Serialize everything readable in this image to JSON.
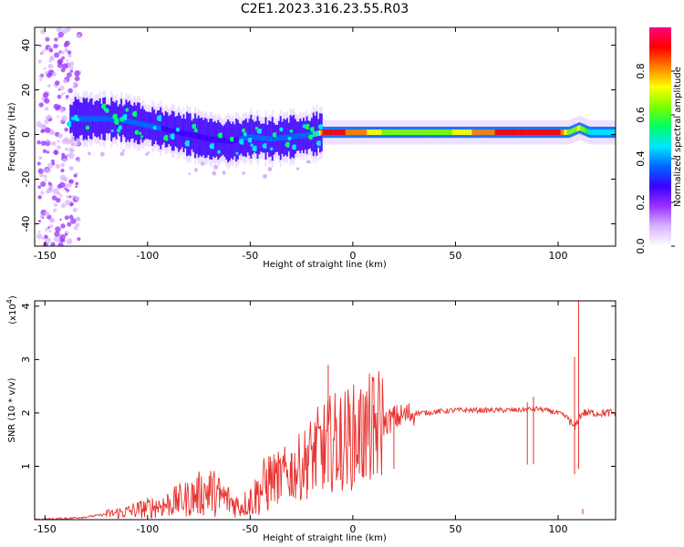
{
  "title": "C2E1.2023.316.23.55.R03",
  "chart_data": [
    {
      "type": "heatmap",
      "xlabel": "Height of straight line (km)",
      "ylabel": "Frequency (Hz)",
      "xlim": [
        -155,
        128
      ],
      "ylim": [
        -50,
        48
      ],
      "xticks": [
        -150,
        -100,
        -50,
        0,
        50,
        100
      ],
      "yticks": [
        -40,
        -20,
        0,
        20,
        40
      ],
      "colorbar": {
        "label": "Normalized spectral amplitude",
        "range": [
          0.0,
          1.0
        ],
        "ticks": [
          0.0,
          0.2,
          0.4,
          0.6,
          0.8
        ],
        "colormap": [
          "#ffffff",
          "#d9b3ff",
          "#9a32ff",
          "#3c00ff",
          "#0066ff",
          "#00e5ff",
          "#00ff66",
          "#7aff00",
          "#ffff00",
          "#ff8000",
          "#ff0000",
          "#ff007f"
        ]
      },
      "ridge": {
        "x": [
          -138,
          -130,
          -120,
          -110,
          -100,
          -90,
          -80,
          -70,
          -60,
          -50,
          -40,
          -30,
          -20,
          -15,
          0,
          20,
          40,
          60,
          80,
          100,
          105,
          110,
          115,
          128
        ],
        "freq": [
          7,
          7,
          7,
          6,
          4,
          2,
          0,
          -2,
          -3,
          -1,
          -2,
          -1,
          0,
          1,
          1,
          1,
          1,
          1,
          1,
          1,
          1,
          3,
          1,
          1
        ],
        "amplitude": [
          0.35,
          0.35,
          0.4,
          0.35,
          0.35,
          0.3,
          0.3,
          0.3,
          0.3,
          0.35,
          0.35,
          0.35,
          0.4,
          0.9,
          0.85,
          0.6,
          0.6,
          0.8,
          0.95,
          0.9,
          0.6,
          0.7,
          0.5,
          0.45
        ]
      }
    },
    {
      "type": "line",
      "xlabel": "Height of straight line (km)",
      "ylabel": "SNR (10 * v/v)",
      "y_multiplier": "(x10",
      "y_multiplier_exp": "4",
      "y_multiplier_close": ")",
      "xlim": [
        -155,
        128
      ],
      "ylim": [
        0,
        4.1
      ],
      "xticks": [
        -150,
        -100,
        -50,
        0,
        50,
        100
      ],
      "yticks": [
        1,
        2,
        3,
        4
      ],
      "color": "#e8302c",
      "series": [
        {
          "x": [
            -155,
            -140,
            -130,
            -120,
            -110,
            -100,
            -90,
            -80,
            -70,
            -60,
            -55,
            -50,
            -45,
            -40,
            -35,
            -30,
            -25,
            -20,
            -15,
            -10,
            -5,
            0,
            5,
            10,
            15,
            20,
            25,
            30,
            35,
            40,
            50,
            60,
            70,
            80,
            90,
            100,
            105,
            108,
            110,
            112,
            115,
            120,
            128
          ],
          "y": [
            0.0,
            0.02,
            0.05,
            0.1,
            0.15,
            0.22,
            0.3,
            0.4,
            0.55,
            0.35,
            0.25,
            0.35,
            0.55,
            0.75,
            0.8,
            0.9,
            1.0,
            1.2,
            1.35,
            1.45,
            1.5,
            1.55,
            1.6,
            1.7,
            1.8,
            1.9,
            1.95,
            2.0,
            2.0,
            2.02,
            2.05,
            2.05,
            2.05,
            2.05,
            2.08,
            2.0,
            1.9,
            1.7,
            1.9,
            2.0,
            2.0,
            2.0,
            2.0
          ]
        }
      ],
      "spikes": {
        "x": [
          -140,
          -120,
          -103,
          -92,
          -85,
          -78,
          -70,
          -65,
          -50,
          -42,
          -36,
          -30,
          -22,
          -18,
          -14,
          -12,
          -8,
          -6,
          5,
          10,
          20,
          85,
          88,
          108,
          110,
          112
        ],
        "y": [
          0.05,
          0.18,
          0.35,
          0.3,
          0.5,
          0.65,
          0.82,
          0.6,
          0.55,
          0.9,
          1.1,
          1.25,
          1.4,
          1.75,
          2.1,
          2.9,
          1.9,
          2.2,
          2.35,
          2.15,
          2.12,
          2.2,
          2.3,
          3.05,
          4.1,
          0.2
        ]
      }
    }
  ]
}
